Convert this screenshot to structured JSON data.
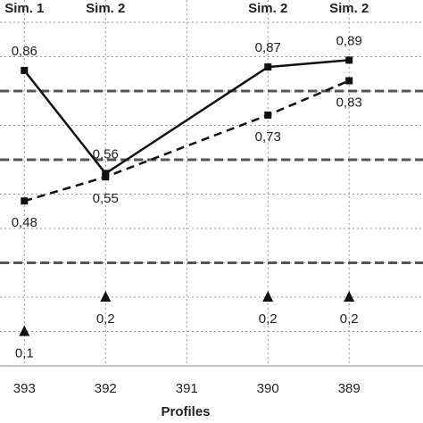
{
  "chart_data": {
    "type": "line",
    "x_label": "Profiles",
    "xlim": [
      393.3,
      388.09
    ],
    "xticks": [
      393,
      392,
      391,
      390,
      389
    ],
    "top_labels": [
      {
        "x": 393,
        "label": "Sim. 1"
      },
      {
        "x": 392,
        "label": "Sim. 2"
      },
      {
        "x": 390,
        "label": "Sim. 2"
      },
      {
        "x": 389,
        "label": "Sim. 2"
      }
    ],
    "ylim": [
      0,
      1.065
    ],
    "yticks": [
      0,
      0.1,
      0.2,
      0.3,
      0.4,
      0.5,
      0.6,
      0.7,
      0.8,
      0.9,
      1.0
    ],
    "grid": true,
    "reference_lines": [
      0.8,
      0.6,
      0.3
    ],
    "series": [
      {
        "style": "solid",
        "marker": "square",
        "color": "#111111",
        "x": [
          393,
          392,
          390,
          389
        ],
        "values": [
          0.86,
          0.56,
          0.87,
          0.89
        ],
        "value_labels": [
          "0,86",
          "0,56",
          "0,87",
          "0,89"
        ]
      },
      {
        "style": "dashed",
        "marker": "square",
        "color": "#111111",
        "x": [
          393,
          392,
          390,
          389
        ],
        "values": [
          0.48,
          0.55,
          0.73,
          0.83
        ],
        "value_labels": [
          "0,48",
          "0,55",
          "0,73",
          "0,83"
        ]
      },
      {
        "style": "none",
        "marker": "triangle",
        "color": "#111111",
        "x": [
          393,
          392,
          390,
          389
        ],
        "values": [
          0.1,
          0.2,
          0.2,
          0.2
        ],
        "value_labels": [
          "0,1",
          "0,2",
          "0,2",
          "0,2"
        ]
      }
    ]
  }
}
